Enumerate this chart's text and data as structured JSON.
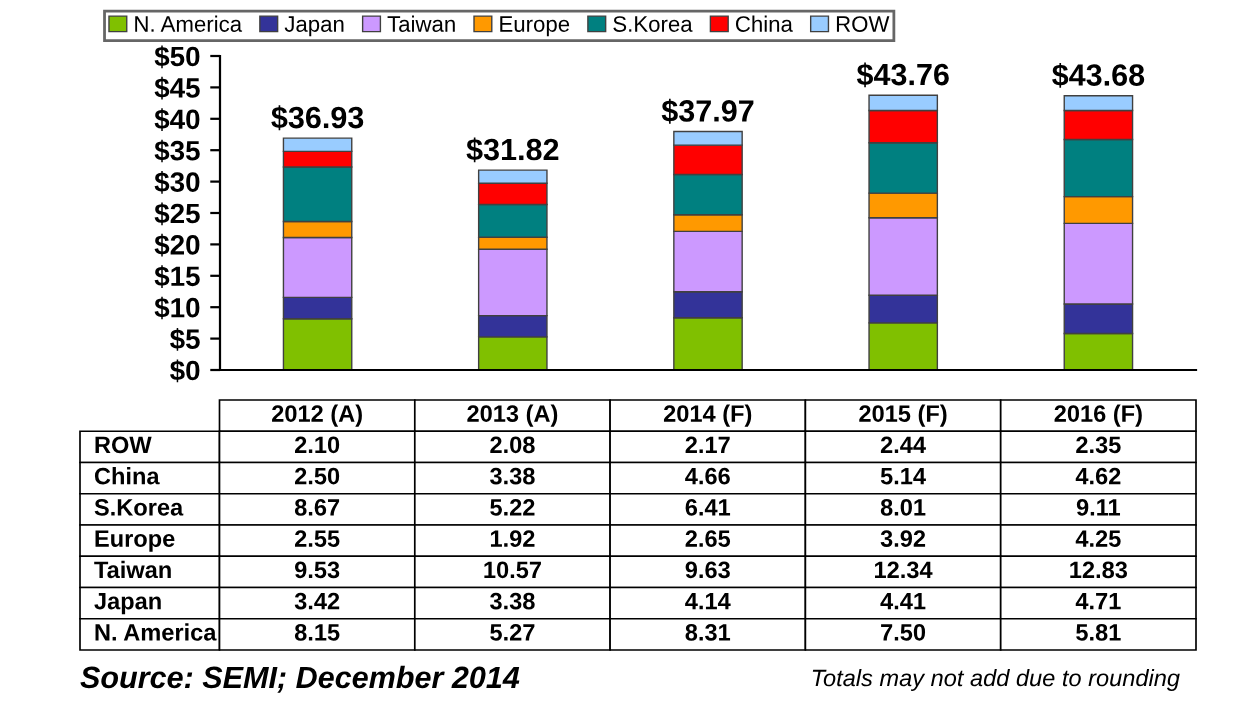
{
  "chart_data": {
    "type": "bar",
    "stacked": true,
    "categories": [
      "2012 (A)",
      "2013 (A)",
      "2014 (F)",
      "2015 (F)",
      "2016 (F)"
    ],
    "series": [
      {
        "name": "N. America",
        "color": "#80c000",
        "values": [
          8.15,
          5.27,
          8.31,
          7.5,
          5.81
        ],
        "value_labels": [
          "8.15",
          "5.27",
          "8.31",
          "7.50",
          "5.81"
        ]
      },
      {
        "name": "Japan",
        "color": "#333399",
        "values": [
          3.42,
          3.38,
          4.14,
          4.41,
          4.71
        ],
        "value_labels": [
          "3.42",
          "3.38",
          "4.14",
          "4.41",
          "4.71"
        ]
      },
      {
        "name": "Taiwan",
        "color": "#cc99ff",
        "values": [
          9.53,
          10.57,
          9.63,
          12.34,
          12.83
        ],
        "value_labels": [
          "9.53",
          "10.57",
          "9.63",
          "12.34",
          "12.83"
        ]
      },
      {
        "name": "Europe",
        "color": "#ff9900",
        "values": [
          2.55,
          1.92,
          2.65,
          3.92,
          4.25
        ],
        "value_labels": [
          "2.55",
          "1.92",
          "2.65",
          "3.92",
          "4.25"
        ]
      },
      {
        "name": "S.Korea",
        "color": "#008080",
        "values": [
          8.67,
          5.22,
          6.41,
          8.01,
          9.11
        ],
        "value_labels": [
          "8.67",
          "5.22",
          "6.41",
          "8.01",
          "9.11"
        ]
      },
      {
        "name": "China",
        "color": "#ff0000",
        "values": [
          2.5,
          3.38,
          4.66,
          5.14,
          4.62
        ],
        "value_labels": [
          "2.50",
          "3.38",
          "4.66",
          "5.14",
          "4.62"
        ]
      },
      {
        "name": "ROW",
        "color": "#99ccff",
        "values": [
          2.1,
          2.08,
          2.17,
          2.44,
          2.35
        ],
        "value_labels": [
          "2.10",
          "2.08",
          "2.17",
          "2.44",
          "2.35"
        ]
      }
    ],
    "totals": [
      "$36.93",
      "$31.82",
      "$37.97",
      "$43.76",
      "$43.68"
    ],
    "ylim": [
      0,
      50
    ],
    "yticks": [
      {
        "value": 0,
        "label": "$0"
      },
      {
        "value": 5,
        "label": "$5"
      },
      {
        "value": 10,
        "label": "$10"
      },
      {
        "value": 15,
        "label": "$15"
      },
      {
        "value": 20,
        "label": "$20"
      },
      {
        "value": 25,
        "label": "$25"
      },
      {
        "value": 30,
        "label": "$30"
      },
      {
        "value": 35,
        "label": "$35"
      },
      {
        "value": 40,
        "label": "$40"
      },
      {
        "value": 45,
        "label": "$45"
      },
      {
        "value": 50,
        "label": "$50"
      }
    ],
    "grid": false,
    "legend": "top",
    "annotations": [
      "Source: SEMI; December 2014",
      "Totals may not add due to rounding"
    ]
  }
}
